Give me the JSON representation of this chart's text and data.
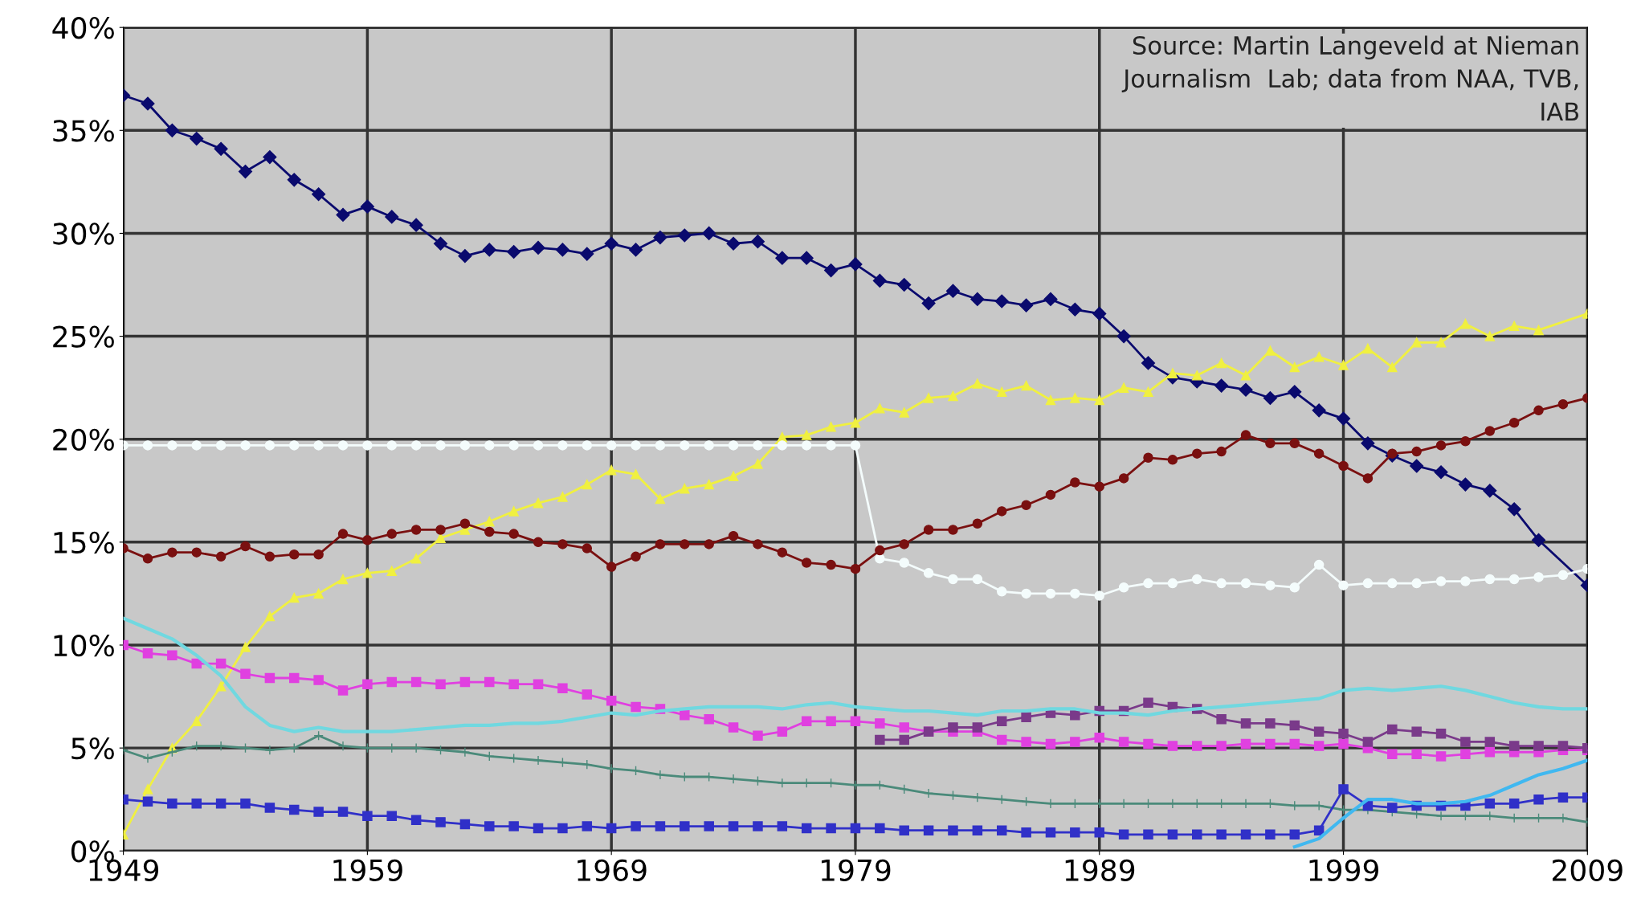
{
  "chart_data": {
    "type": "line",
    "xlim": [
      1949,
      2009
    ],
    "xticks": [
      1949,
      1959,
      1969,
      1979,
      1989,
      1999,
      2009
    ],
    "ylim": [
      0,
      40
    ],
    "yticks": [
      {
        "value": 0,
        "label": "0%"
      },
      {
        "value": 5,
        "label": "5%"
      },
      {
        "value": 10,
        "label": "10%"
      },
      {
        "value": 15,
        "label": "15%"
      },
      {
        "value": 20,
        "label": "20%"
      },
      {
        "value": 25,
        "label": "25%"
      },
      {
        "value": 30,
        "label": "30%"
      },
      {
        "value": 35,
        "label": "35%"
      },
      {
        "value": 40,
        "label": "40%"
      }
    ],
    "grid": true,
    "annotations": [
      "Source: Martin Langeveld at Nieman\nJournalism  Lab; data from NAA, TVB,\nIAB"
    ],
    "series": [
      {
        "color": "#0a0a6e",
        "marker": "diamond",
        "x": [
          1949,
          1950,
          1951,
          1952,
          1953,
          1954,
          1955,
          1956,
          1957,
          1958,
          1959,
          1960,
          1961,
          1962,
          1963,
          1964,
          1965,
          1966,
          1967,
          1968,
          1969,
          1970,
          1971,
          1972,
          1973,
          1974,
          1975,
          1976,
          1977,
          1978,
          1979,
          1980,
          1981,
          1982,
          1983,
          1984,
          1985,
          1986,
          1987,
          1988,
          1989,
          1990,
          1991,
          1992,
          1993,
          1994,
          1995,
          1996,
          1997,
          1998,
          1999,
          2000,
          2001,
          2002,
          2003,
          2004,
          2005,
          2006,
          2007,
          2009
        ],
        "values": [
          36.7,
          36.3,
          35.0,
          34.6,
          34.1,
          33.0,
          33.7,
          32.6,
          31.9,
          30.9,
          31.3,
          30.8,
          30.4,
          29.5,
          28.9,
          29.2,
          29.1,
          29.3,
          29.2,
          29.0,
          29.5,
          29.2,
          29.8,
          29.9,
          30.0,
          29.5,
          29.6,
          28.8,
          28.8,
          28.2,
          28.5,
          27.7,
          27.5,
          26.6,
          27.2,
          26.8,
          26.7,
          26.5,
          26.8,
          26.3,
          26.1,
          25.0,
          23.7,
          23.0,
          22.8,
          22.6,
          22.4,
          22.0,
          22.3,
          21.4,
          21.0,
          19.8,
          19.2,
          18.7,
          18.4,
          17.8,
          17.5,
          16.6,
          15.1,
          12.9
        ]
      },
      {
        "color": "#f0f040",
        "marker": "triangle",
        "x": [
          1949,
          1950,
          1951,
          1952,
          1953,
          1954,
          1955,
          1956,
          1957,
          1958,
          1959,
          1960,
          1961,
          1962,
          1963,
          1964,
          1965,
          1966,
          1967,
          1968,
          1969,
          1970,
          1971,
          1972,
          1973,
          1974,
          1975,
          1976,
          1977,
          1978,
          1979,
          1980,
          1981,
          1982,
          1983,
          1984,
          1985,
          1986,
          1987,
          1988,
          1989,
          1990,
          1991,
          1992,
          1993,
          1994,
          1995,
          1996,
          1997,
          1998,
          1999,
          2000,
          2001,
          2002,
          2003,
          2004,
          2005,
          2006,
          2007,
          2009
        ],
        "values": [
          0.8,
          3.0,
          5.0,
          6.3,
          8.0,
          9.9,
          11.4,
          12.3,
          12.5,
          13.2,
          13.5,
          13.6,
          14.2,
          15.2,
          15.6,
          16.0,
          16.5,
          16.9,
          17.2,
          17.8,
          18.5,
          18.3,
          17.1,
          17.6,
          17.8,
          18.2,
          18.8,
          20.1,
          20.2,
          20.6,
          20.8,
          21.5,
          21.3,
          22.0,
          22.1,
          22.7,
          22.3,
          22.6,
          21.9,
          22.0,
          21.9,
          22.5,
          22.3,
          23.2,
          23.1,
          23.7,
          23.1,
          24.3,
          23.5,
          24.0,
          23.6,
          24.4,
          23.5,
          24.7,
          24.7,
          25.6,
          25.0,
          25.5,
          25.3,
          26.1
        ]
      },
      {
        "color": "#f4fcfc",
        "marker": "circle",
        "x": [
          1949,
          1950,
          1951,
          1952,
          1953,
          1954,
          1955,
          1956,
          1957,
          1958,
          1959,
          1960,
          1961,
          1962,
          1963,
          1964,
          1965,
          1966,
          1967,
          1968,
          1969,
          1970,
          1971,
          1972,
          1973,
          1974,
          1975,
          1976,
          1977,
          1978,
          1979,
          1980,
          1981,
          1982,
          1983,
          1984,
          1985,
          1986,
          1987,
          1988,
          1989,
          1990,
          1991,
          1992,
          1993,
          1994,
          1995,
          1996,
          1997,
          1998,
          1999,
          2000,
          2001,
          2002,
          2003,
          2004,
          2005,
          2006,
          2007,
          2008,
          2009
        ],
        "values": [
          19.7,
          19.7,
          19.7,
          19.7,
          19.7,
          19.7,
          19.7,
          19.7,
          19.7,
          19.7,
          19.7,
          19.7,
          19.7,
          19.7,
          19.7,
          19.7,
          19.7,
          19.7,
          19.7,
          19.7,
          19.7,
          19.7,
          19.7,
          19.7,
          19.7,
          19.7,
          19.7,
          19.7,
          19.7,
          19.7,
          19.7,
          14.2,
          14.0,
          13.5,
          13.2,
          13.2,
          12.6,
          12.5,
          12.5,
          12.5,
          12.4,
          12.8,
          13.0,
          13.0,
          13.2,
          13.0,
          13.0,
          12.9,
          12.8,
          13.9,
          12.9,
          13.0,
          13.0,
          13.0,
          13.1,
          13.1,
          13.2,
          13.2,
          13.3,
          13.4,
          13.7
        ]
      },
      {
        "color": "#7a1010",
        "marker": "circle",
        "x": [
          1949,
          1950,
          1951,
          1952,
          1953,
          1954,
          1955,
          1956,
          1957,
          1958,
          1959,
          1960,
          1961,
          1962,
          1963,
          1964,
          1965,
          1966,
          1967,
          1968,
          1969,
          1970,
          1971,
          1972,
          1973,
          1974,
          1975,
          1976,
          1977,
          1978,
          1979,
          1980,
          1981,
          1982,
          1983,
          1984,
          1985,
          1986,
          1987,
          1988,
          1989,
          1990,
          1991,
          1992,
          1993,
          1994,
          1995,
          1996,
          1997,
          1998,
          1999,
          2000,
          2001,
          2002,
          2003,
          2004,
          2005,
          2006,
          2007,
          2008,
          2009
        ],
        "values": [
          14.7,
          14.2,
          14.5,
          14.5,
          14.3,
          14.8,
          14.3,
          14.4,
          14.4,
          15.4,
          15.1,
          15.4,
          15.6,
          15.6,
          15.9,
          15.5,
          15.4,
          15.0,
          14.9,
          14.7,
          13.8,
          14.3,
          14.9,
          14.9,
          14.9,
          15.3,
          14.9,
          14.5,
          14.0,
          13.9,
          13.7,
          14.6,
          14.9,
          15.6,
          15.6,
          15.9,
          16.5,
          16.8,
          17.3,
          17.9,
          17.7,
          18.1,
          19.1,
          19.0,
          19.3,
          19.4,
          20.2,
          19.8,
          19.8,
          19.3,
          18.7,
          18.1,
          19.3,
          19.4,
          19.7,
          19.9,
          20.4,
          20.8,
          21.4,
          21.7,
          22.0
        ]
      },
      {
        "color": "#e040e0",
        "marker": "square",
        "x": [
          1949,
          1950,
          1951,
          1952,
          1953,
          1954,
          1955,
          1956,
          1957,
          1958,
          1959,
          1960,
          1961,
          1962,
          1963,
          1964,
          1965,
          1966,
          1967,
          1968,
          1969,
          1970,
          1971,
          1972,
          1973,
          1974,
          1975,
          1976,
          1977,
          1978,
          1979,
          1980,
          1981,
          1982,
          1983,
          1984,
          1985,
          1986,
          1987,
          1988,
          1989,
          1990,
          1991,
          1992,
          1993,
          1994,
          1995,
          1996,
          1997,
          1998,
          1999,
          2000,
          2001,
          2002,
          2003,
          2004,
          2005,
          2006,
          2007,
          2008,
          2009
        ],
        "values": [
          10.0,
          9.6,
          9.5,
          9.1,
          9.1,
          8.6,
          8.4,
          8.4,
          8.3,
          7.8,
          8.1,
          8.2,
          8.2,
          8.1,
          8.2,
          8.2,
          8.1,
          8.1,
          7.9,
          7.6,
          7.3,
          7.0,
          6.9,
          6.6,
          6.4,
          6.0,
          5.6,
          5.8,
          6.3,
          6.3,
          6.3,
          6.2,
          6.0,
          5.8,
          5.8,
          5.8,
          5.4,
          5.3,
          5.2,
          5.3,
          5.5,
          5.3,
          5.2,
          5.1,
          5.1,
          5.1,
          5.2,
          5.2,
          5.2,
          5.1,
          5.2,
          5.0,
          4.7,
          4.7,
          4.6,
          4.7,
          4.8,
          4.8,
          4.8,
          4.9,
          4.9
        ]
      },
      {
        "color": "#7a3a8a",
        "marker": "square",
        "x": [
          1980,
          1981,
          1982,
          1983,
          1984,
          1985,
          1986,
          1987,
          1988,
          1989,
          1990,
          1991,
          1992,
          1993,
          1994,
          1995,
          1996,
          1997,
          1998,
          1999,
          2000,
          2001,
          2002,
          2003,
          2004,
          2005,
          2006,
          2007,
          2008,
          2009
        ],
        "values": [
          5.4,
          5.4,
          5.8,
          6.0,
          6.0,
          6.3,
          6.5,
          6.7,
          6.6,
          6.8,
          6.8,
          7.2,
          7.0,
          6.9,
          6.4,
          6.2,
          6.2,
          6.1,
          5.8,
          5.7,
          5.3,
          5.9,
          5.8,
          5.7,
          5.3,
          5.3,
          5.1,
          5.1,
          5.1,
          5.0
        ]
      },
      {
        "color": "#70d8e0",
        "marker": "none",
        "x": [
          1949,
          1950,
          1951,
          1952,
          1953,
          1954,
          1955,
          1956,
          1957,
          1958,
          1959,
          1960,
          1961,
          1962,
          1963,
          1964,
          1965,
          1966,
          1967,
          1968,
          1969,
          1970,
          1971,
          1972,
          1973,
          1974,
          1975,
          1976,
          1977,
          1978,
          1979,
          1980,
          1981,
          1982,
          1983,
          1984,
          1985,
          1986,
          1987,
          1988,
          1989,
          1990,
          1991,
          1992,
          1993,
          1994,
          1995,
          1996,
          1997,
          1998,
          1999,
          2000,
          2001,
          2002,
          2003,
          2004,
          2005,
          2006,
          2007,
          2008,
          2009
        ],
        "values": [
          11.3,
          10.8,
          10.3,
          9.5,
          8.5,
          7.0,
          6.1,
          5.8,
          6.0,
          5.8,
          5.8,
          5.8,
          5.9,
          6.0,
          6.1,
          6.1,
          6.2,
          6.2,
          6.3,
          6.5,
          6.7,
          6.6,
          6.8,
          6.9,
          7.0,
          7.0,
          7.0,
          6.9,
          7.1,
          7.2,
          7.0,
          6.9,
          6.8,
          6.8,
          6.7,
          6.6,
          6.8,
          6.8,
          6.9,
          6.9,
          6.7,
          6.7,
          6.6,
          6.8,
          6.9,
          7.0,
          7.1,
          7.2,
          7.3,
          7.4,
          7.8,
          7.9,
          7.8,
          7.9,
          8.0,
          7.8,
          7.5,
          7.2,
          7.0,
          6.9,
          6.9
        ]
      },
      {
        "color": "#4a8a7a",
        "marker": "cross",
        "x": [
          1949,
          1950,
          1951,
          1952,
          1953,
          1954,
          1955,
          1956,
          1957,
          1958,
          1959,
          1960,
          1961,
          1962,
          1963,
          1964,
          1965,
          1966,
          1967,
          1968,
          1969,
          1970,
          1971,
          1972,
          1973,
          1974,
          1975,
          1976,
          1977,
          1978,
          1979,
          1980,
          1981,
          1982,
          1983,
          1984,
          1985,
          1986,
          1987,
          1988,
          1989,
          1990,
          1991,
          1992,
          1993,
          1994,
          1995,
          1996,
          1997,
          1998,
          1999,
          2000,
          2001,
          2002,
          2003,
          2004,
          2005,
          2006,
          2007,
          2008,
          2009
        ],
        "values": [
          4.9,
          4.5,
          4.8,
          5.1,
          5.1,
          5.0,
          4.9,
          5.0,
          5.6,
          5.1,
          5.0,
          5.0,
          5.0,
          4.9,
          4.8,
          4.6,
          4.5,
          4.4,
          4.3,
          4.2,
          4.0,
          3.9,
          3.7,
          3.6,
          3.6,
          3.5,
          3.4,
          3.3,
          3.3,
          3.3,
          3.2,
          3.2,
          3.0,
          2.8,
          2.7,
          2.6,
          2.5,
          2.4,
          2.3,
          2.3,
          2.3,
          2.3,
          2.3,
          2.3,
          2.3,
          2.3,
          2.3,
          2.3,
          2.2,
          2.2,
          2.0,
          2.0,
          1.9,
          1.8,
          1.7,
          1.7,
          1.7,
          1.6,
          1.6,
          1.6,
          1.4
        ]
      },
      {
        "color": "#3030c8",
        "marker": "square",
        "x": [
          1949,
          1950,
          1951,
          1952,
          1953,
          1954,
          1955,
          1956,
          1957,
          1958,
          1959,
          1960,
          1961,
          1962,
          1963,
          1964,
          1965,
          1966,
          1967,
          1968,
          1969,
          1970,
          1971,
          1972,
          1973,
          1974,
          1975,
          1976,
          1977,
          1978,
          1979,
          1980,
          1981,
          1982,
          1983,
          1984,
          1985,
          1986,
          1987,
          1988,
          1989,
          1990,
          1991,
          1992,
          1993,
          1994,
          1995,
          1996,
          1997,
          1998,
          1999,
          2000,
          2001,
          2002,
          2003,
          2004,
          2005,
          2006,
          2007,
          2008,
          2009
        ],
        "values": [
          2.5,
          2.4,
          2.3,
          2.3,
          2.3,
          2.3,
          2.1,
          2.0,
          1.9,
          1.9,
          1.7,
          1.7,
          1.5,
          1.4,
          1.3,
          1.2,
          1.2,
          1.1,
          1.1,
          1.2,
          1.1,
          1.2,
          1.2,
          1.2,
          1.2,
          1.2,
          1.2,
          1.2,
          1.1,
          1.1,
          1.1,
          1.1,
          1.0,
          1.0,
          1.0,
          1.0,
          1.0,
          0.9,
          0.9,
          0.9,
          0.9,
          0.8,
          0.8,
          0.8,
          0.8,
          0.8,
          0.8,
          0.8,
          0.8,
          1.0,
          3.0,
          2.2,
          2.1,
          2.2,
          2.2,
          2.2,
          2.3,
          2.3,
          2.5,
          2.6,
          2.6
        ]
      },
      {
        "color": "#40b8f0",
        "marker": "none",
        "x": [
          1997,
          1998,
          1999,
          2000,
          2001,
          2002,
          2003,
          2004,
          2005,
          2006,
          2007,
          2008,
          2009
        ],
        "values": [
          0.2,
          0.6,
          1.6,
          2.5,
          2.5,
          2.3,
          2.3,
          2.4,
          2.7,
          3.2,
          3.7,
          4.0,
          4.4
        ]
      }
    ]
  }
}
